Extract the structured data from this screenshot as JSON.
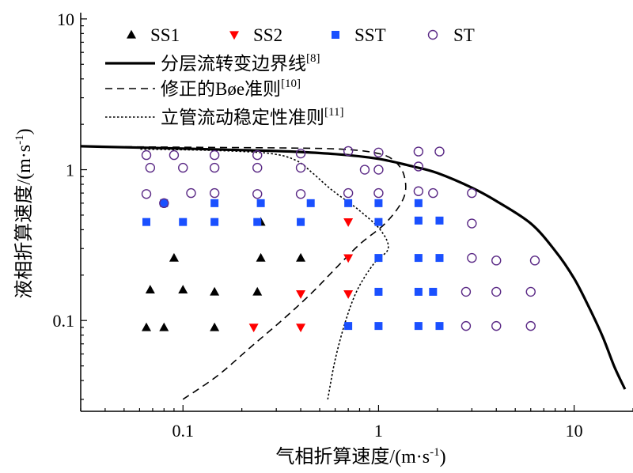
{
  "chart_data": {
    "type": "scatter",
    "x_scale": "log",
    "y_scale": "log",
    "xlim": [
      0.03,
      20
    ],
    "ylim": [
      0.025,
      11
    ],
    "xlabel": "气相折算速度/(m·s⁻¹)",
    "ylabel": "液相折算速度/(m·s⁻¹)",
    "x_ticks": [
      {
        "value": 0.1,
        "label": "0.1"
      },
      {
        "value": 1,
        "label": "1"
      },
      {
        "value": 10,
        "label": "10"
      }
    ],
    "y_ticks": [
      {
        "value": 0.1,
        "label": "0.1"
      },
      {
        "value": 1,
        "label": "1"
      },
      {
        "value": 10,
        "label": "10"
      }
    ],
    "grid": false,
    "legend_position": "top-left",
    "series": [
      {
        "name": "SS1",
        "marker": "triangle-up",
        "color": "#000000",
        "points": [
          [
            0.065,
            0.09
          ],
          [
            0.08,
            0.09
          ],
          [
            0.145,
            0.09
          ],
          [
            0.068,
            0.16
          ],
          [
            0.1,
            0.16
          ],
          [
            0.145,
            0.155
          ],
          [
            0.24,
            0.155
          ],
          [
            0.09,
            0.26
          ],
          [
            0.25,
            0.26
          ],
          [
            0.4,
            0.26
          ],
          [
            0.25,
            0.45
          ]
        ]
      },
      {
        "name": "SS2",
        "marker": "triangle-down",
        "color": "#ff0000",
        "points": [
          [
            0.23,
            0.09
          ],
          [
            0.4,
            0.09
          ],
          [
            0.4,
            0.15
          ],
          [
            0.7,
            0.15
          ],
          [
            0.7,
            0.26
          ],
          [
            0.7,
            0.45
          ]
        ]
      },
      {
        "name": "SST",
        "marker": "square",
        "color": "#1a50ff",
        "points": [
          [
            0.065,
            0.45
          ],
          [
            0.1,
            0.45
          ],
          [
            0.145,
            0.45
          ],
          [
            0.24,
            0.45
          ],
          [
            0.4,
            0.45
          ],
          [
            1.0,
            0.45
          ],
          [
            1.6,
            0.46
          ],
          [
            2.05,
            0.46
          ],
          [
            0.08,
            0.6
          ],
          [
            0.145,
            0.6
          ],
          [
            0.25,
            0.6
          ],
          [
            0.45,
            0.6
          ],
          [
            0.7,
            0.6
          ],
          [
            1.0,
            0.6
          ],
          [
            1.6,
            0.6
          ],
          [
            1.0,
            0.26
          ],
          [
            1.6,
            0.26
          ],
          [
            2.05,
            0.26
          ],
          [
            1.0,
            0.155
          ],
          [
            1.6,
            0.155
          ],
          [
            1.9,
            0.155
          ],
          [
            0.7,
            0.092
          ],
          [
            1.0,
            0.092
          ],
          [
            1.6,
            0.092
          ],
          [
            2.05,
            0.092
          ]
        ]
      },
      {
        "name": "ST",
        "marker": "circle-open",
        "color": "#5b2a86",
        "points": [
          [
            0.065,
            1.25
          ],
          [
            0.09,
            1.25
          ],
          [
            0.145,
            1.25
          ],
          [
            0.24,
            1.25
          ],
          [
            0.4,
            1.28
          ],
          [
            0.7,
            1.33
          ],
          [
            1.0,
            1.3
          ],
          [
            1.6,
            1.32
          ],
          [
            2.05,
            1.32
          ],
          [
            0.068,
            1.03
          ],
          [
            0.1,
            1.03
          ],
          [
            0.145,
            1.03
          ],
          [
            0.24,
            1.03
          ],
          [
            0.4,
            1.03
          ],
          [
            0.85,
            1.0
          ],
          [
            1.0,
            1.0
          ],
          [
            1.6,
            1.05
          ],
          [
            0.065,
            0.69
          ],
          [
            0.08,
            0.6
          ],
          [
            0.11,
            0.7
          ],
          [
            0.145,
            0.7
          ],
          [
            0.24,
            0.69
          ],
          [
            0.4,
            0.69
          ],
          [
            0.7,
            0.7
          ],
          [
            1.0,
            0.7
          ],
          [
            1.6,
            0.72
          ],
          [
            1.9,
            0.7
          ],
          [
            3.0,
            0.7
          ],
          [
            3.0,
            0.44
          ],
          [
            3.0,
            0.26
          ],
          [
            4.0,
            0.25
          ],
          [
            6.3,
            0.25
          ],
          [
            2.8,
            0.155
          ],
          [
            4.0,
            0.155
          ],
          [
            6.0,
            0.155
          ],
          [
            2.8,
            0.092
          ],
          [
            4.0,
            0.092
          ],
          [
            6.0,
            0.092
          ]
        ]
      }
    ],
    "curves": [
      {
        "name": "分层流转变边界线",
        "citation": "[8]",
        "style": "solid",
        "points": [
          [
            0.03,
            1.43
          ],
          [
            0.1,
            1.38
          ],
          [
            0.3,
            1.33
          ],
          [
            0.6,
            1.27
          ],
          [
            1.0,
            1.18
          ],
          [
            1.5,
            1.05
          ],
          [
            2.0,
            0.95
          ],
          [
            3.0,
            0.76
          ],
          [
            4.0,
            0.62
          ],
          [
            6.0,
            0.44
          ],
          [
            8.0,
            0.29
          ],
          [
            10.0,
            0.19
          ],
          [
            12.0,
            0.12
          ],
          [
            14.0,
            0.078
          ],
          [
            16.0,
            0.05
          ],
          [
            18.2,
            0.035
          ]
        ]
      },
      {
        "name": "修正的Bøe准则",
        "citation": "[10]",
        "style": "dashed",
        "points": [
          [
            0.1,
            0.03
          ],
          [
            0.15,
            0.043
          ],
          [
            0.22,
            0.066
          ],
          [
            0.32,
            0.1
          ],
          [
            0.45,
            0.15
          ],
          [
            0.6,
            0.22
          ],
          [
            0.8,
            0.32
          ],
          [
            1.1,
            0.45
          ],
          [
            1.35,
            0.66
          ],
          [
            1.35,
            0.92
          ],
          [
            1.2,
            1.15
          ],
          [
            1.0,
            1.28
          ],
          [
            0.7,
            1.36
          ],
          [
            0.4,
            1.39
          ],
          [
            0.1,
            1.41
          ],
          [
            0.05,
            1.42
          ]
        ]
      },
      {
        "name": "立管流动稳定性准则",
        "citation": "[11]",
        "style": "dotted",
        "points": [
          [
            0.55,
            0.03
          ],
          [
            0.6,
            0.055
          ],
          [
            0.68,
            0.1
          ],
          [
            0.78,
            0.16
          ],
          [
            0.95,
            0.24
          ],
          [
            1.12,
            0.3
          ],
          [
            1.02,
            0.4
          ],
          [
            0.78,
            0.55
          ],
          [
            0.58,
            0.73
          ],
          [
            0.46,
            0.95
          ],
          [
            0.38,
            1.15
          ],
          [
            0.28,
            1.28
          ],
          [
            0.15,
            1.34
          ],
          [
            0.06,
            1.37
          ]
        ]
      }
    ]
  }
}
